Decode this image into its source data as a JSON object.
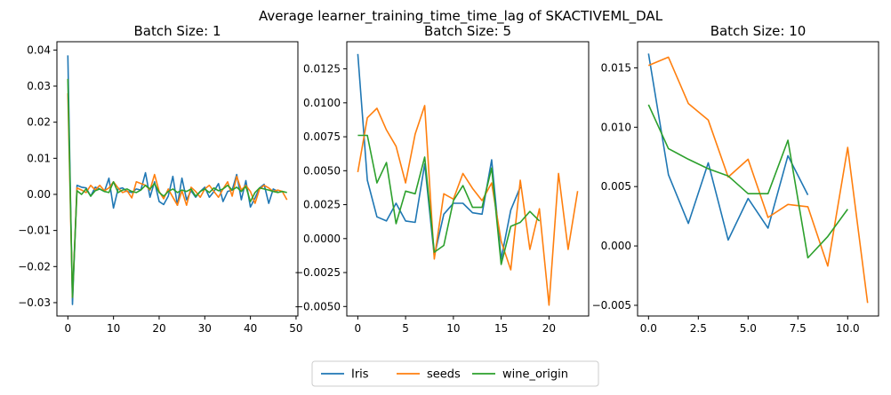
{
  "suptitle": "Average learner_training_time_time_lag of SKACTIVEML_DAL",
  "colors": {
    "Iris": "#1f77b4",
    "seeds": "#ff7f0e",
    "wine_origin": "#2ca02c"
  },
  "legend": {
    "placement": "bottom-center",
    "entries": [
      "Iris",
      "seeds",
      "wine_origin"
    ]
  },
  "chart_data": [
    {
      "type": "line",
      "title": "Batch Size: 1",
      "xlim": [
        -2.4,
        50.4
      ],
      "ylim": [
        -0.0337,
        0.0423
      ],
      "xticks": [
        0,
        10,
        20,
        30,
        40,
        50
      ],
      "xtick_labels": [
        "0",
        "10",
        "20",
        "30",
        "40",
        "50"
      ],
      "yticks": [
        -0.03,
        -0.02,
        -0.01,
        0.0,
        0.01,
        0.02,
        0.03,
        0.04
      ],
      "ytick_labels": [
        "−0.03",
        "−0.02",
        "−0.01",
        "0.00",
        "0.01",
        "0.02",
        "0.03",
        "0.04"
      ],
      "series": [
        {
          "name": "Iris",
          "x": [
            0,
            1,
            2,
            3,
            4,
            5,
            6,
            7,
            8,
            9,
            10,
            11,
            12,
            13,
            14,
            15,
            16,
            17,
            18,
            19,
            20,
            21,
            22,
            23,
            24,
            25,
            26,
            27,
            28,
            29,
            30,
            31,
            32,
            33,
            34,
            35,
            36,
            37,
            38,
            39,
            40,
            41,
            42,
            43,
            44,
            45,
            46
          ],
          "y": [
            0.0385,
            -0.0305,
            0.0025,
            0.002,
            0.0018,
            -0.0005,
            0.002,
            0.0015,
            0.0008,
            0.0045,
            -0.0038,
            0.0015,
            0.0018,
            0.0008,
            0.0005,
            0.0015,
            0.0012,
            0.006,
            -0.0008,
            0.0035,
            -0.002,
            -0.0028,
            -0.0005,
            0.005,
            -0.003,
            0.0045,
            -0.0015,
            0.001,
            -0.0008,
            0.0008,
            0.002,
            -0.0008,
            0.0008,
            0.003,
            -0.002,
            0.0008,
            0.0012,
            0.0055,
            -0.0015,
            0.0038,
            -0.0035,
            -0.001,
            0.0018,
            0.0028,
            -0.0025,
            0.0015,
            0.0008
          ]
        },
        {
          "name": "seeds",
          "x": [
            0,
            1,
            2,
            3,
            4,
            5,
            6,
            7,
            8,
            9,
            10,
            11,
            12,
            13,
            14,
            15,
            16,
            17,
            18,
            19,
            20,
            21,
            22,
            23,
            24,
            25,
            26,
            27,
            28,
            29,
            30,
            31,
            32,
            33,
            34,
            35,
            36,
            37,
            38,
            39,
            40,
            41,
            42,
            43,
            44,
            45,
            46,
            47,
            48
          ],
          "y": [
            0.028,
            -0.0285,
            0.0018,
            0.0012,
            0.0005,
            0.0025,
            0.0012,
            0.0025,
            0.001,
            0.0018,
            0.0035,
            0.0018,
            0.0005,
            0.001,
            -0.001,
            0.0035,
            0.003,
            0.0025,
            0.0012,
            0.0055,
            0.0008,
            -0.0012,
            0.0015,
            -0.0008,
            -0.003,
            0.001,
            -0.003,
            0.002,
            0.0008,
            -0.0008,
            0.0015,
            0.0025,
            0.0008,
            -0.0008,
            0.0015,
            0.0035,
            -0.0005,
            0.005,
            0.0012,
            0.0025,
            0.0008,
            -0.0025,
            0.0015,
            0.0025,
            0.0018,
            0.0008,
            0.0012,
            0.0008,
            -0.0015
          ]
        },
        {
          "name": "wine_origin",
          "x": [
            0,
            1,
            2,
            3,
            4,
            5,
            6,
            7,
            8,
            9,
            10,
            11,
            12,
            13,
            14,
            15,
            16,
            17,
            18,
            19,
            20,
            21,
            22,
            23,
            24,
            25,
            26,
            27,
            28,
            29,
            30,
            31,
            32,
            33,
            34,
            35,
            36,
            37,
            38,
            39,
            40,
            41,
            42,
            43,
            44,
            45,
            46,
            47,
            48
          ],
          "y": [
            0.032,
            -0.0285,
            0.001,
            0.0,
            0.0015,
            -0.0005,
            0.001,
            0.0015,
            0.0008,
            0.0005,
            0.0035,
            0.0005,
            0.0012,
            0.0015,
            0.0008,
            0.0005,
            0.0012,
            0.0025,
            0.0015,
            0.003,
            0.0005,
            -0.0005,
            0.0008,
            0.0015,
            0.0005,
            0.0012,
            0.0008,
            0.0015,
            -0.0005,
            0.0008,
            0.0015,
            0.0005,
            0.0018,
            0.001,
            0.0015,
            0.0025,
            0.0012,
            0.002,
            0.0008,
            0.0022,
            -0.002,
            0.0005,
            0.0018,
            0.0015,
            0.0012,
            0.0008,
            0.0005,
            0.0008,
            0.0005
          ]
        }
      ]
    },
    {
      "type": "line",
      "title": "Batch Size: 5",
      "xlim": [
        -1.15,
        24.15
      ],
      "ylim": [
        -0.0057,
        0.0145
      ],
      "xticks": [
        0,
        5,
        10,
        15,
        20
      ],
      "xtick_labels": [
        "0",
        "5",
        "10",
        "15",
        "20"
      ],
      "yticks": [
        -0.005,
        -0.0025,
        0.0,
        0.0025,
        0.005,
        0.0075,
        0.01,
        0.0125
      ],
      "ytick_labels": [
        "−0.0050",
        "−0.0025",
        "0.0000",
        "0.0025",
        "0.0050",
        "0.0075",
        "0.0100",
        "0.0125"
      ],
      "series": [
        {
          "name": "Iris",
          "x": [
            0,
            1,
            2,
            3,
            4,
            5,
            6,
            7,
            8,
            9,
            10,
            11,
            12,
            13,
            14,
            15,
            16,
            17
          ],
          "y": [
            0.0136,
            0.0043,
            0.0016,
            0.0013,
            0.0026,
            0.0013,
            0.0012,
            0.0055,
            -0.0013,
            0.0018,
            0.0026,
            0.0026,
            0.0019,
            0.0018,
            0.0058,
            -0.0015,
            0.0021,
            0.0038
          ]
        },
        {
          "name": "seeds",
          "x": [
            0,
            1,
            2,
            3,
            4,
            5,
            6,
            7,
            8,
            9,
            10,
            11,
            12,
            13,
            14,
            15,
            16,
            17,
            18,
            19,
            20,
            21,
            22,
            23
          ],
          "y": [
            0.0049,
            0.0089,
            0.0096,
            0.008,
            0.0068,
            0.0041,
            0.0077,
            0.0098,
            -0.0015,
            0.0033,
            0.0029,
            0.0048,
            0.0037,
            0.0028,
            0.0041,
            -0.0002,
            -0.0023,
            0.0043,
            -0.0008,
            0.0022,
            -0.0049,
            0.0048,
            -0.0008,
            0.0035
          ]
        },
        {
          "name": "wine_origin",
          "x": [
            0,
            1,
            2,
            3,
            4,
            5,
            6,
            7,
            8,
            9,
            10,
            11,
            12,
            13,
            14,
            15,
            16,
            17,
            18,
            19
          ],
          "y": [
            0.0076,
            0.0076,
            0.0041,
            0.0056,
            0.0011,
            0.0035,
            0.0033,
            0.006,
            -0.001,
            -0.0005,
            0.0028,
            0.0039,
            0.0023,
            0.0023,
            0.0052,
            -0.0019,
            0.0009,
            0.0012,
            0.002,
            0.0013
          ]
        }
      ]
    },
    {
      "type": "line",
      "title": "Batch Size: 10",
      "xlim": [
        -0.55,
        11.55
      ],
      "ylim": [
        -0.0059,
        0.0172
      ],
      "xticks": [
        0,
        2.5,
        5,
        7.5,
        10
      ],
      "xtick_labels": [
        "0.0",
        "2.5",
        "5.0",
        "7.5",
        "10.0"
      ],
      "yticks": [
        -0.005,
        0.0,
        0.005,
        0.01,
        0.015
      ],
      "ytick_labels": [
        "−0.005",
        "0.000",
        "0.005",
        "0.010",
        "0.015"
      ],
      "series": [
        {
          "name": "Iris",
          "x": [
            0,
            1,
            2,
            3,
            4,
            5,
            6,
            7,
            8
          ],
          "y": [
            0.0162,
            0.006,
            0.0019,
            0.007,
            0.0005,
            0.004,
            0.0015,
            0.0076,
            0.0043
          ]
        },
        {
          "name": "seeds",
          "x": [
            0,
            1,
            2,
            3,
            4,
            5,
            6,
            7,
            8,
            9,
            10,
            11
          ],
          "y": [
            0.0152,
            0.0159,
            0.012,
            0.0106,
            0.0058,
            0.0073,
            0.0024,
            0.0035,
            0.0033,
            -0.0017,
            0.0083,
            -0.0048
          ]
        },
        {
          "name": "wine_origin",
          "x": [
            0,
            1,
            2,
            3,
            4,
            5,
            6,
            7,
            8,
            9,
            10
          ],
          "y": [
            0.0119,
            0.0082,
            0.0073,
            0.0065,
            0.0059,
            0.0044,
            0.0044,
            0.0089,
            -0.001,
            0.0008,
            0.0031
          ]
        }
      ]
    }
  ]
}
